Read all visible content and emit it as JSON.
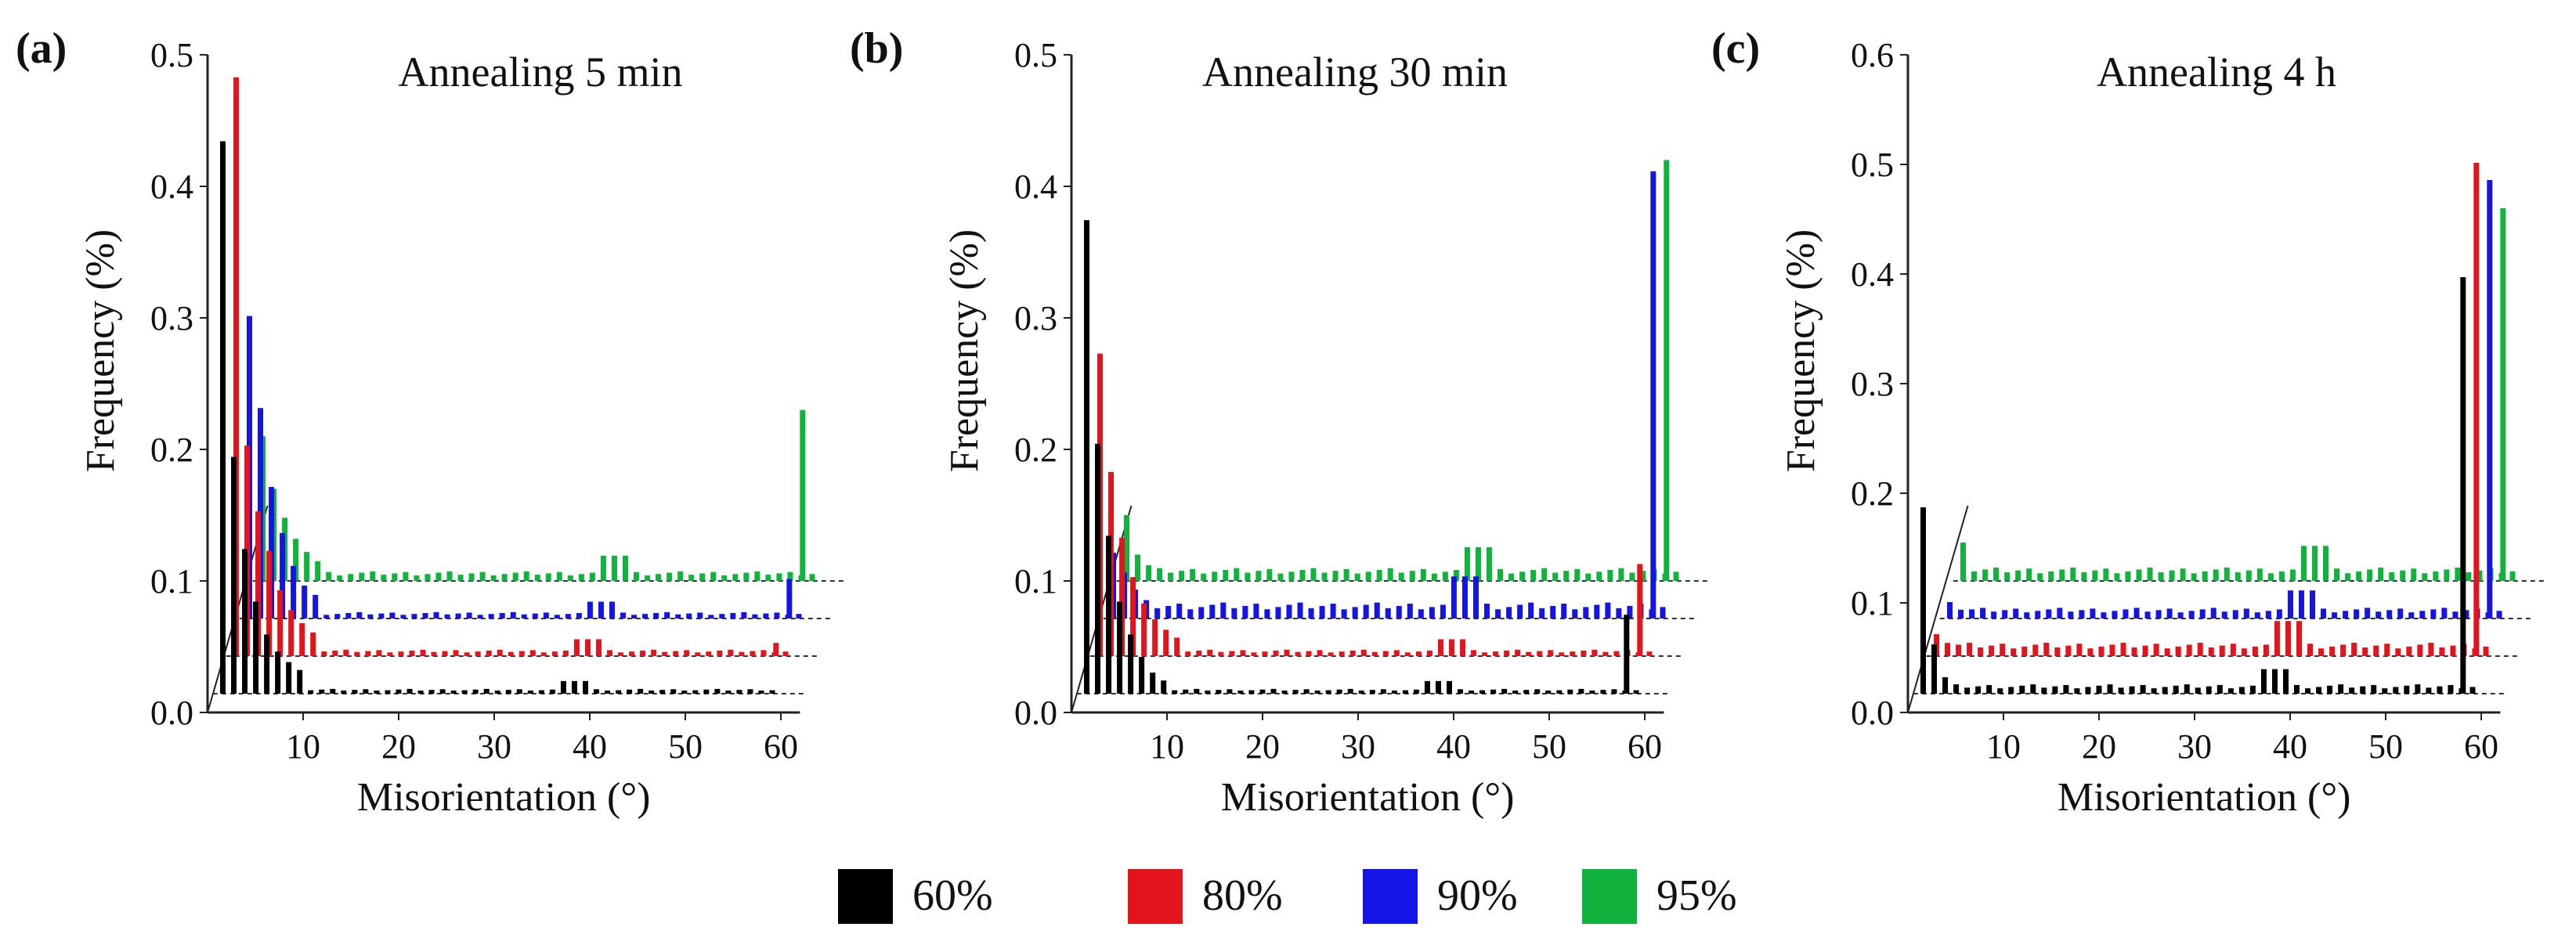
{
  "figure": {
    "legend": [
      {
        "label": "60%",
        "color": "#000000"
      },
      {
        "label": "80%",
        "color": "#e3141b"
      },
      {
        "label": "90%",
        "color": "#1414e6"
      },
      {
        "label": "95%",
        "color": "#12b33c"
      }
    ]
  },
  "chart_data": [
    {
      "type": "bar",
      "panel": "(a)",
      "title": "Annealing 5 min",
      "xlabel": "Misorientation (°)",
      "ylabel": "Frequency (%)",
      "xlim": [
        0,
        62
      ],
      "ylim": [
        0,
        0.5
      ],
      "xticks": [
        "10",
        "20",
        "30",
        "40",
        "50",
        "60"
      ],
      "yticks": [
        "0.0",
        "0.1",
        "0.2",
        "0.3",
        "0.4",
        "0.5"
      ],
      "series": [
        {
          "name": "60%",
          "color": "#000000",
          "peaks": [
            0.42,
            0.18,
            0.11,
            0.07,
            0.045,
            0.032,
            0.024,
            0.018
          ],
          "plateau": 0.003,
          "high_angle": 0.0
        },
        {
          "name": "80%",
          "color": "#e3141b",
          "peaks": [
            0.44,
            0.16,
            0.11,
            0.08,
            0.05,
            0.035,
            0.025,
            0.018
          ],
          "plateau": 0.004,
          "high_angle": 0.01
        },
        {
          "name": "90%",
          "color": "#1414e6",
          "peaks": [
            0.23,
            0.16,
            0.1,
            0.065,
            0.04,
            0.025,
            0.018
          ],
          "plateau": 0.004,
          "high_angle": 0.03
        },
        {
          "name": "95%",
          "color": "#12b33c",
          "peaks": [
            0.11,
            0.07,
            0.048,
            0.032,
            0.022,
            0.015
          ],
          "plateau": 0.006,
          "high_angle": 0.13
        }
      ]
    },
    {
      "type": "bar",
      "panel": "(b)",
      "title": "Annealing 30 min",
      "xlabel": "Misorientation (°)",
      "ylabel": "Frequency (%)",
      "xlim": [
        0,
        62
      ],
      "ylim": [
        0,
        0.5
      ],
      "xticks": [
        "10",
        "20",
        "30",
        "40",
        "50",
        "60"
      ],
      "yticks": [
        "0.0",
        "0.1",
        "0.2",
        "0.3",
        "0.4",
        "0.5"
      ],
      "series": [
        {
          "name": "60%",
          "color": "#000000",
          "peaks": [
            0.36,
            0.19,
            0.12,
            0.07,
            0.045,
            0.028,
            0.016,
            0.01
          ],
          "plateau": 0.003,
          "high_angle": 0.06
        },
        {
          "name": "80%",
          "color": "#e3141b",
          "peaks": [
            0.23,
            0.14,
            0.09,
            0.06,
            0.04,
            0.028,
            0.02,
            0.014
          ],
          "plateau": 0.004,
          "high_angle": 0.07
        },
        {
          "name": "90%",
          "color": "#1414e6",
          "peaks": [
            0.05,
            0.035,
            0.022,
            0.014
          ],
          "plateau": 0.01,
          "high_angle": 0.34
        },
        {
          "name": "95%",
          "color": "#12b33c",
          "peaks": [
            0.05,
            0.02,
            0.012
          ],
          "plateau": 0.008,
          "high_angle": 0.32
        }
      ]
    },
    {
      "type": "bar",
      "panel": "(c)",
      "title": "Annealing 4 h",
      "xlabel": "Misorientation (°)",
      "ylabel": "Frequency (%)",
      "xlim": [
        0,
        62
      ],
      "ylim": [
        0,
        0.6
      ],
      "xticks": [
        "10",
        "20",
        "30",
        "40",
        "50",
        "60"
      ],
      "yticks": [
        "0.0",
        "0.1",
        "0.2",
        "0.3",
        "0.4",
        "0.5",
        "0.6"
      ],
      "series": [
        {
          "name": "60%",
          "color": "#000000",
          "peaks": [
            0.17,
            0.045,
            0.015
          ],
          "plateau": 0.007,
          "high_angle": 0.38
        },
        {
          "name": "80%",
          "color": "#e3141b",
          "peaks": [
            0.02,
            0.012
          ],
          "plateau": 0.01,
          "high_angle": 0.45
        },
        {
          "name": "90%",
          "color": "#1414e6",
          "peaks": [
            0.015,
            0.008
          ],
          "plateau": 0.008,
          "high_angle": 0.4
        },
        {
          "name": "95%",
          "color": "#12b33c",
          "peaks": [
            0.035
          ],
          "plateau": 0.01,
          "high_angle": 0.34
        }
      ]
    }
  ]
}
